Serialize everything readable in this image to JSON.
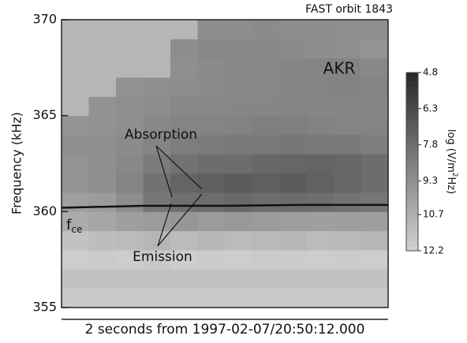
{
  "chart_data": {
    "type": "heatmap",
    "title": "FAST orbit 1843",
    "y_label": "Frequency (kHz)",
    "x_label": "2 seconds from 1997-02-07/20:50:12.000",
    "xlim": [
      0,
      2
    ],
    "ylim": [
      355,
      370
    ],
    "yticks": [
      355,
      360,
      365,
      370
    ],
    "clim": [
      4.8,
      12.2
    ],
    "cticks": [
      4.8,
      6.3,
      7.8,
      9.3,
      10.7,
      12.2
    ],
    "colorbar_label": {
      "text": "log (V/m",
      "superscript": "2",
      "suffix": "Hz)"
    },
    "z": [
      [
        11.8,
        11.8,
        11.8,
        11.8,
        11.8,
        11.8,
        11.8,
        11.8,
        11.8,
        11.8,
        11.8,
        11.8
      ],
      [
        11.5,
        11.5,
        11.5,
        11.5,
        11.5,
        11.5,
        11.5,
        11.5,
        11.5,
        11.5,
        11.5,
        11.5
      ],
      [
        12.0,
        11.9,
        12.0,
        11.8,
        12.0,
        11.9,
        12.0,
        11.9,
        11.9,
        12.0,
        11.9,
        12.0
      ],
      [
        11.5,
        11.3,
        11.2,
        11.0,
        11.2,
        11.0,
        11.2,
        11.1,
        11.0,
        11.2,
        11.1,
        11.0
      ],
      [
        10.5,
        10.3,
        10.0,
        9.8,
        9.6,
        9.8,
        9.7,
        9.8,
        9.9,
        10.0,
        10.0,
        10.0
      ],
      [
        10.0,
        9.8,
        9.2,
        8.2,
        7.9,
        7.8,
        7.6,
        7.8,
        7.7,
        7.8,
        8.0,
        8.2
      ],
      [
        9.5,
        9.3,
        8.8,
        8.0,
        7.4,
        7.2,
        7.0,
        7.2,
        7.0,
        7.3,
        7.5,
        7.8
      ],
      [
        9.5,
        9.3,
        9.0,
        8.4,
        8.0,
        7.8,
        7.8,
        7.6,
        7.5,
        7.4,
        7.5,
        7.8
      ],
      [
        9.3,
        9.3,
        9.1,
        8.8,
        8.5,
        8.4,
        8.3,
        8.3,
        8.2,
        8.3,
        8.3,
        8.5
      ],
      [
        9.5,
        9.4,
        9.3,
        9.0,
        8.8,
        8.8,
        8.7,
        8.6,
        8.6,
        8.7,
        8.8,
        8.8
      ],
      [
        11.0,
        9.4,
        9.3,
        9.2,
        9.0,
        9.0,
        8.9,
        8.9,
        8.8,
        8.9,
        8.8,
        8.9
      ],
      [
        11.0,
        11.0,
        9.4,
        9.3,
        9.2,
        9.1,
        9.0,
        9.0,
        8.9,
        8.8,
        8.7,
        8.8
      ],
      [
        11.0,
        11.0,
        11.0,
        11.0,
        9.3,
        9.1,
        9.0,
        9.0,
        8.9,
        8.8,
        8.8,
        9.0
      ],
      [
        11.0,
        11.0,
        11.0,
        11.0,
        9.2,
        9.0,
        9.0,
        9.0,
        9.1,
        9.2,
        9.3,
        9.5
      ],
      [
        11.0,
        11.0,
        11.0,
        11.0,
        11.0,
        9.2,
        9.2,
        9.1,
        9.2,
        9.2,
        9.3,
        9.3
      ]
    ],
    "lines": [
      {
        "x": [
          0,
          0.5,
          1,
          1.5,
          2
        ],
        "values": [
          360.2,
          360.3,
          360.3,
          360.35,
          360.35
        ],
        "color": "#111111"
      }
    ],
    "annotations": {
      "akr": "AKR",
      "absorption": "Absorption",
      "emission": "Emission",
      "fce": {
        "text": "f",
        "subscript": "ce"
      }
    }
  }
}
